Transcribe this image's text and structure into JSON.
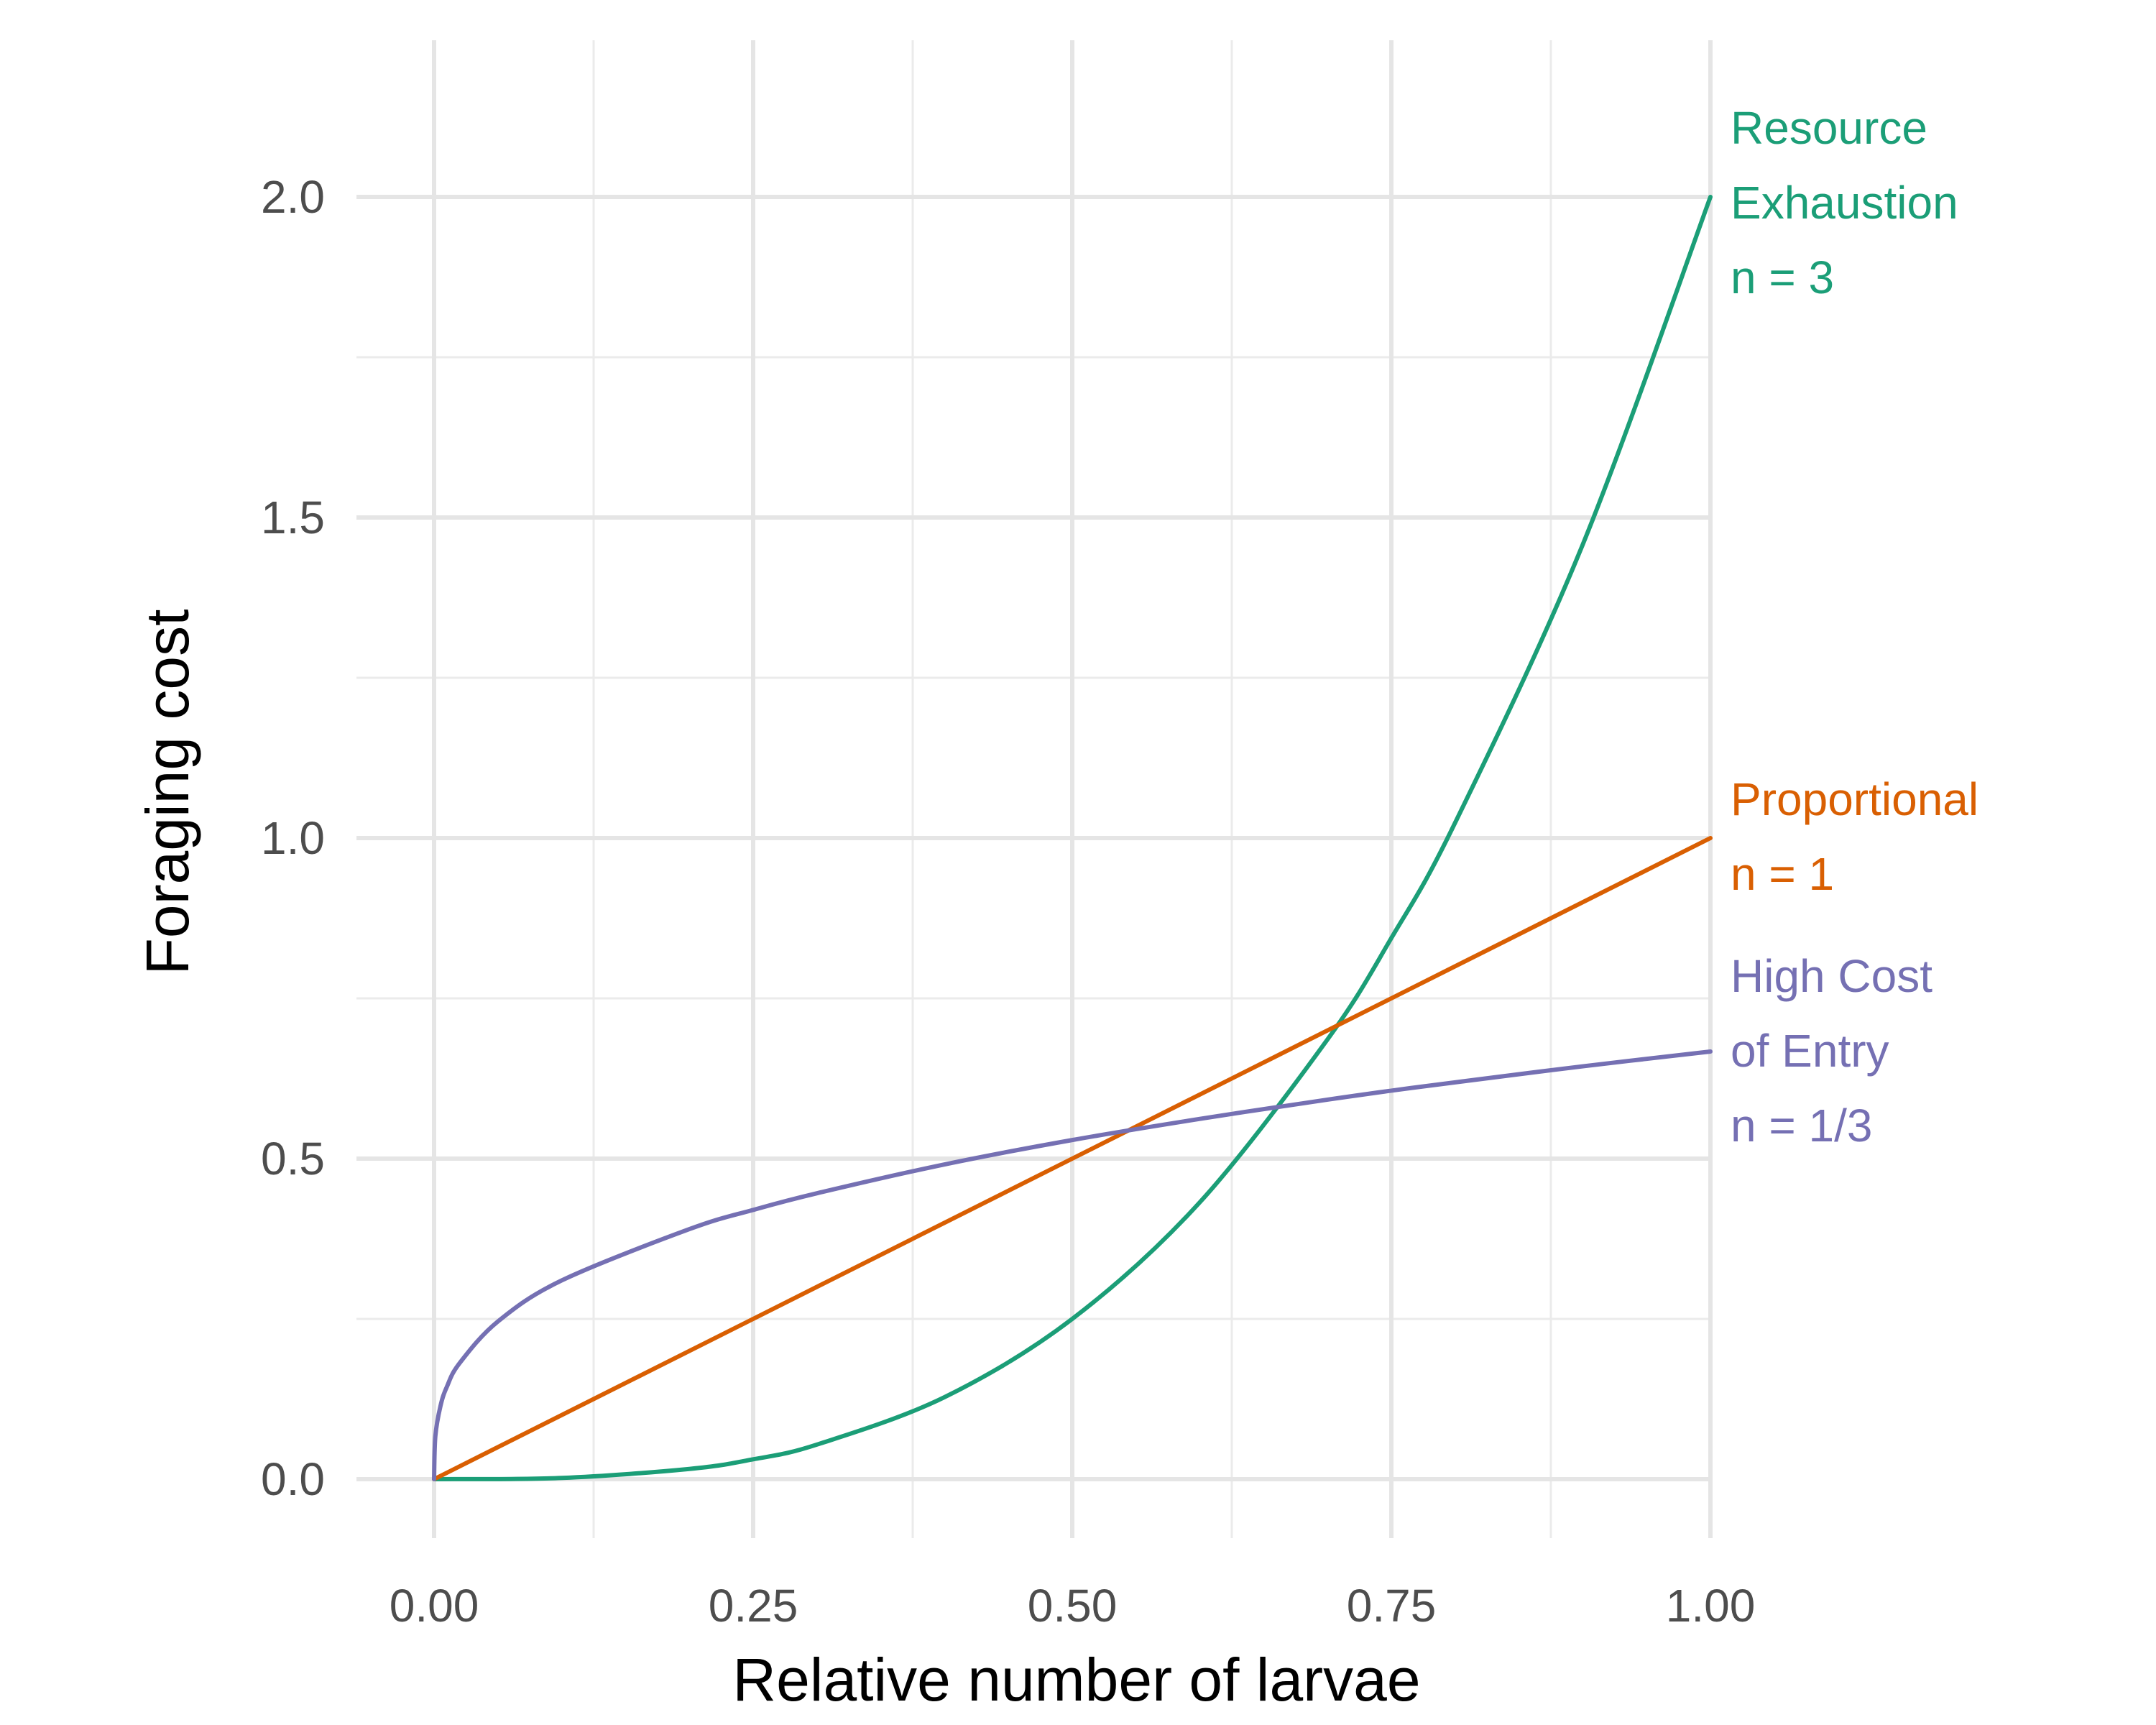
{
  "chart_data": {
    "type": "line",
    "title": "",
    "xlabel": "Relative number of larvae",
    "ylabel": "Foraging cost",
    "xlim": [
      0,
      1
    ],
    "ylim": [
      -0.08,
      2.25
    ],
    "x_ticks": [
      "0.00",
      "0.25",
      "0.50",
      "0.75",
      "1.00"
    ],
    "y_ticks": [
      "0.0",
      "0.5",
      "1.0",
      "1.5",
      "2.0"
    ],
    "grid": true,
    "legend": "direct labels at right end of each line",
    "series": [
      {
        "label_lines": [
          "Resource",
          "Exhaustion",
          "n = 3"
        ],
        "color": "#1b9e77",
        "x": [
          0,
          0.1,
          0.2,
          0.25,
          0.3,
          0.4,
          0.5,
          0.6,
          0.7,
          0.75,
          0.8,
          0.9,
          1.0
        ],
        "y": [
          0,
          0.002,
          0.016,
          0.031,
          0.054,
          0.128,
          0.25,
          0.432,
          0.686,
          0.844,
          1.024,
          1.458,
          2.0
        ]
      },
      {
        "label_lines": [
          "Proportional",
          "n = 1"
        ],
        "color": "#d95f02",
        "x": [
          0,
          0.25,
          0.5,
          0.75,
          1.0
        ],
        "y": [
          0,
          0.25,
          0.5,
          0.75,
          1.0
        ]
      },
      {
        "label_lines": [
          "High Cost",
          "of Entry",
          "n = 1/3"
        ],
        "color": "#7570b3",
        "x": [
          0,
          0.001,
          0.005,
          0.01,
          0.02,
          0.05,
          0.1,
          0.2,
          0.25,
          0.3,
          0.4,
          0.5,
          0.6,
          0.7,
          0.75,
          0.8,
          0.9,
          1.0
        ],
        "y": [
          0,
          0.067,
          0.114,
          0.144,
          0.181,
          0.246,
          0.31,
          0.39,
          0.42,
          0.446,
          0.491,
          0.529,
          0.562,
          0.592,
          0.606,
          0.619,
          0.644,
          0.667
        ]
      }
    ]
  }
}
